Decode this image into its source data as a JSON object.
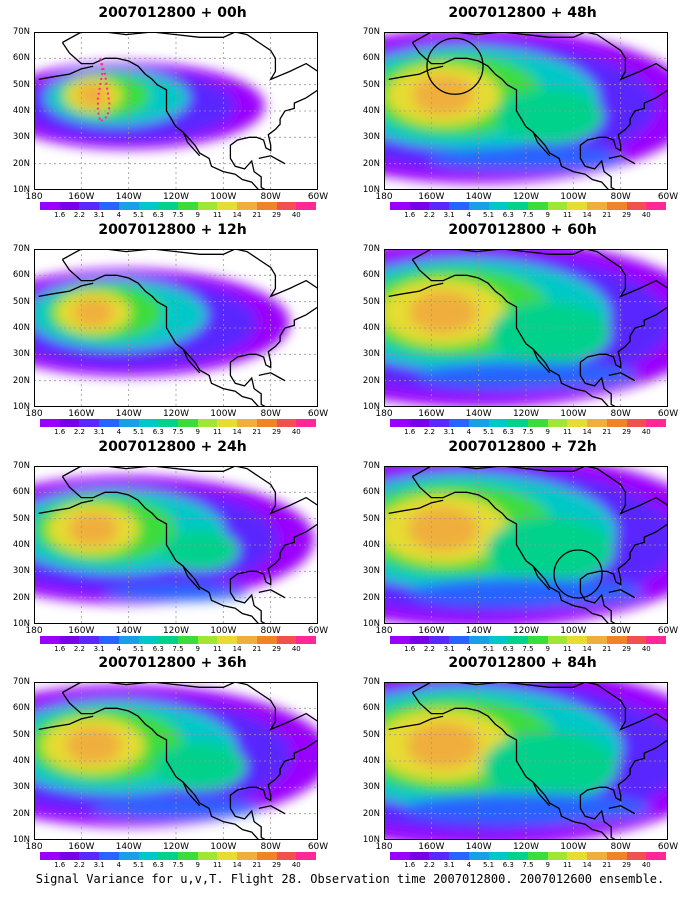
{
  "panels": [
    {
      "title": "2007012800 + 00h",
      "intensity": 0.25,
      "circle": null,
      "track": true
    },
    {
      "title": "2007012800 + 48h",
      "intensity": 0.75,
      "circle": "pacific",
      "track": false
    },
    {
      "title": "2007012800 + 12h",
      "intensity": 0.4,
      "circle": null,
      "track": false
    },
    {
      "title": "2007012800 + 60h",
      "intensity": 0.85,
      "circle": null,
      "track": false
    },
    {
      "title": "2007012800 + 24h",
      "intensity": 0.55,
      "circle": null,
      "track": false
    },
    {
      "title": "2007012800 + 72h",
      "intensity": 0.9,
      "circle": "gulf",
      "track": false
    },
    {
      "title": "2007012800 + 36h",
      "intensity": 0.65,
      "circle": null,
      "track": false
    },
    {
      "title": "2007012800 + 84h",
      "intensity": 0.95,
      "circle": null,
      "track": false
    }
  ],
  "lat_labels": [
    "70N",
    "60N",
    "50N",
    "40N",
    "30N",
    "20N",
    "10N"
  ],
  "lon_labels": [
    "180",
    "160W",
    "140W",
    "120W",
    "100W",
    "80W",
    "60W"
  ],
  "colorbar_labels": [
    "1.6",
    "2.2",
    "3.1",
    "4",
    "5.1",
    "6.3",
    "7.5",
    "9",
    "11",
    "14",
    "21",
    "29",
    "40"
  ],
  "colorbar_colors": [
    "#9a00ff",
    "#7800e6",
    "#5a28ff",
    "#2864ff",
    "#18a0e6",
    "#00c8c8",
    "#00d28c",
    "#3cdc3c",
    "#a0e632",
    "#e6dc32",
    "#f0af3c",
    "#f08228",
    "#f05050",
    "#ff2896"
  ],
  "caption": "Signal Variance for u,v,T. Flight 28. Observation time 2007012800. 2007012600 ensemble."
}
